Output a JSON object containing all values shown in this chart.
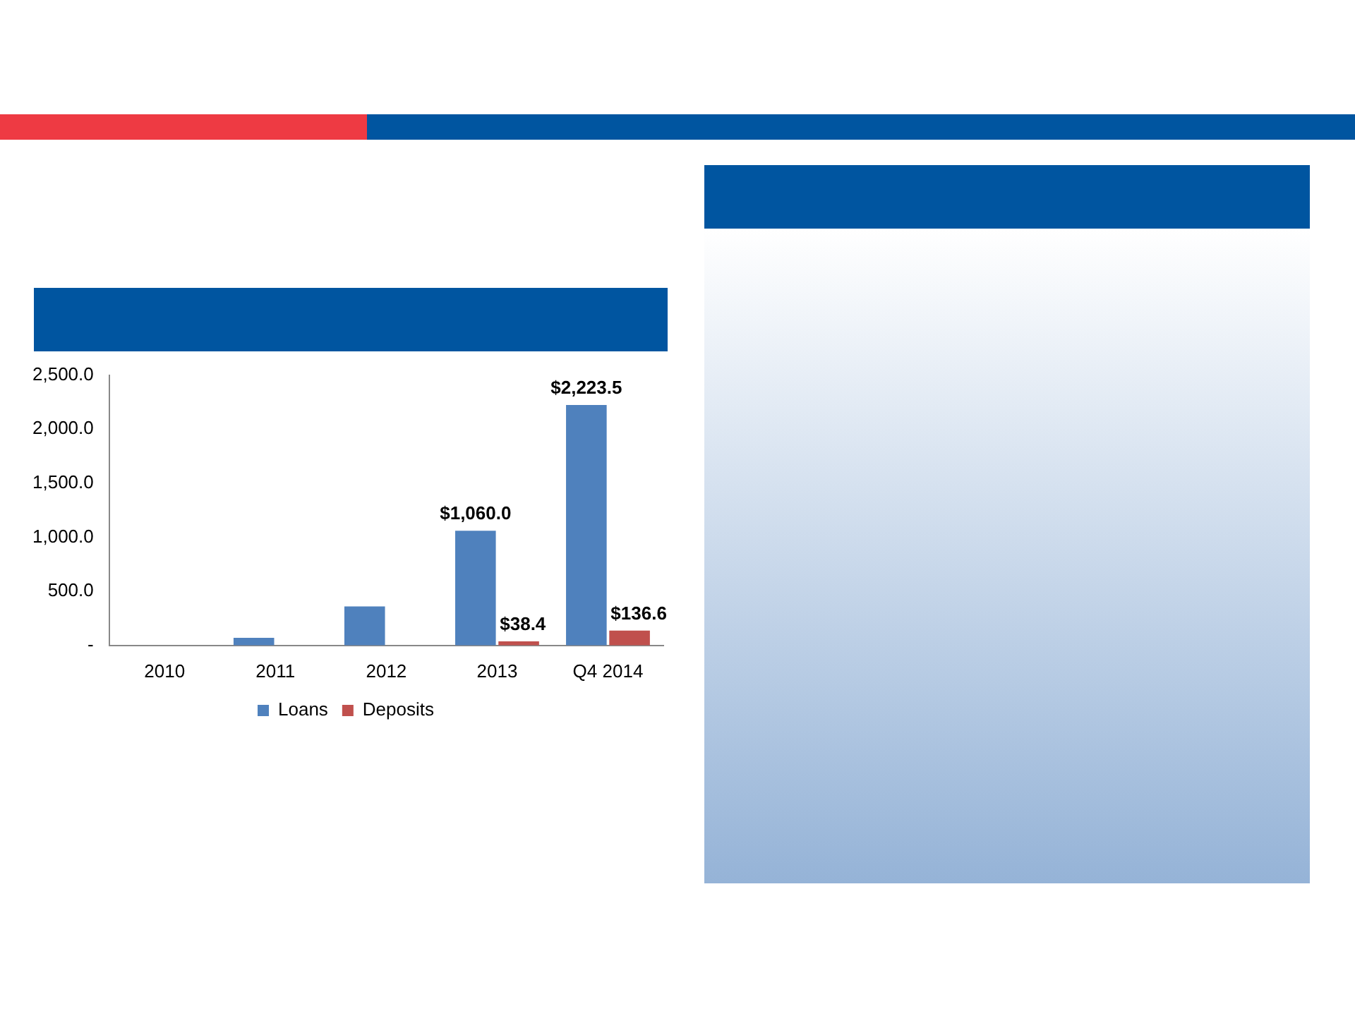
{
  "chart_data": {
    "type": "bar",
    "categories": [
      "2010",
      "2011",
      "2012",
      "2013",
      "Q4 2014"
    ],
    "series": [
      {
        "name": "Loans",
        "color": "#4f81bd",
        "values": [
          0,
          70,
          360,
          1060.0,
          2223.5
        ],
        "value_labels": [
          null,
          null,
          null,
          "$1,060.0",
          "$2,223.5"
        ]
      },
      {
        "name": "Deposits",
        "color": "#c0504d",
        "values": [
          0,
          0,
          0,
          38.4,
          136.6
        ],
        "value_labels": [
          null,
          null,
          null,
          "$38.4",
          "$136.6"
        ]
      }
    ],
    "ylim": [
      0,
      2500
    ],
    "yticks": [
      {
        "value": 0,
        "label": "-"
      },
      {
        "value": 500,
        "label": "500.0"
      },
      {
        "value": 1000,
        "label": "1,000.0"
      },
      {
        "value": 1500,
        "label": "1,500.0"
      },
      {
        "value": 2000,
        "label": "2,000.0"
      },
      {
        "value": 2500,
        "label": "2,500.0"
      }
    ],
    "grid": false,
    "legend": "bottom"
  }
}
